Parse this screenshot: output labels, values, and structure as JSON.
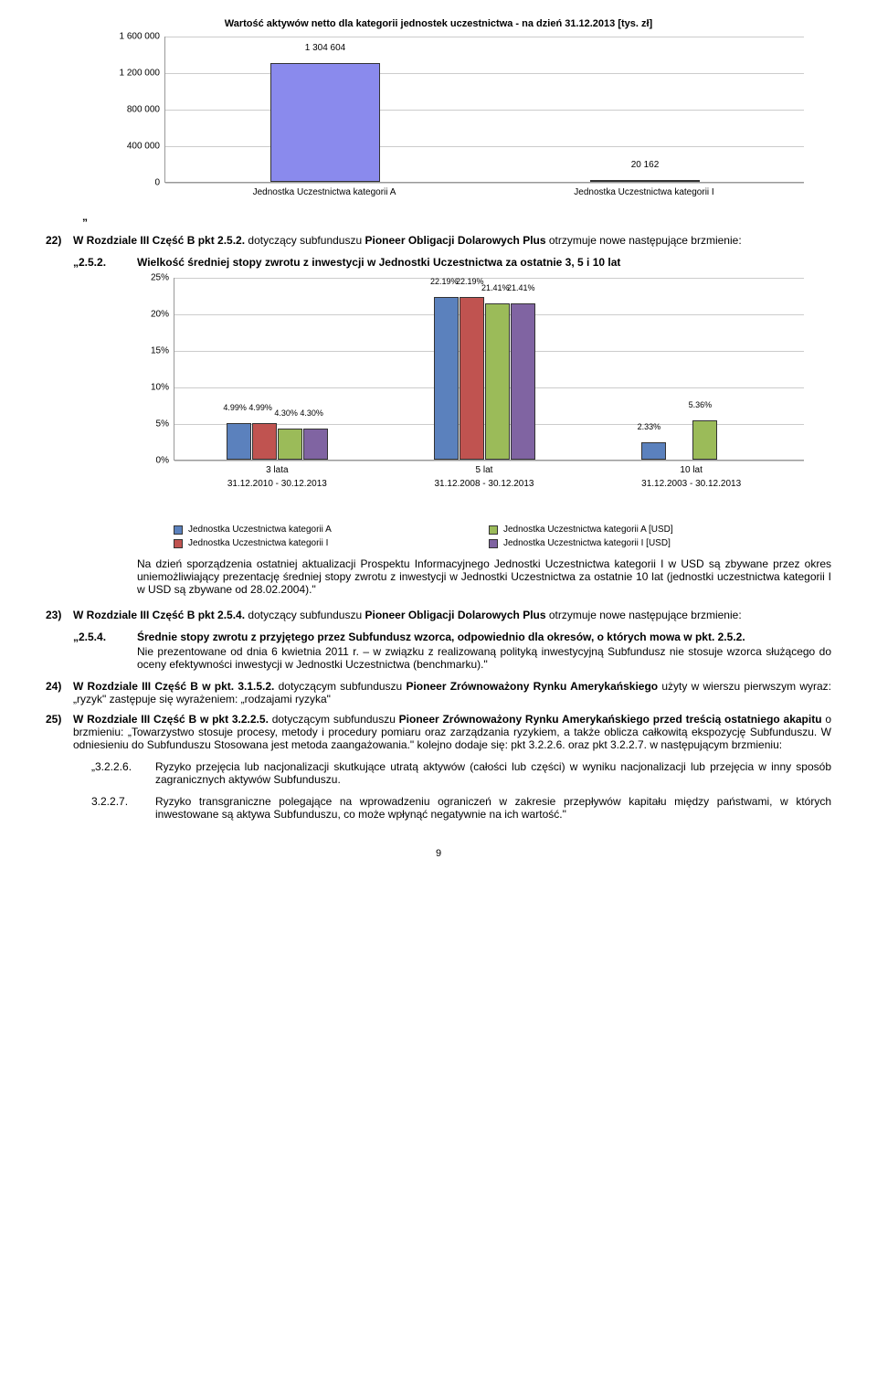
{
  "chart1": {
    "title": "Wartość aktywów netto dla kategorii jednostek uczestnictwa - na dzień 31.12.2013 [tys. zł]",
    "yticks": [
      "0",
      "400 000",
      "800 000",
      "1 200 000",
      "1 600 000"
    ],
    "ymax": 1600000,
    "categories": [
      "Jednostka Uczestnictwa kategorii A",
      "Jednostka Uczestnictwa kategorii I"
    ],
    "values": [
      1304604,
      20162
    ],
    "labels": [
      "1 304 604",
      "20 162"
    ],
    "bar_color": "#8a8aed",
    "grid_color": "#cccccc"
  },
  "quote": "„",
  "item22": {
    "num": "22)",
    "text_a": "W Rozdziale III Część B pkt 2.5.2.",
    "text_b": " dotyczący subfunduszu ",
    "text_c": "Pioneer Obligacji Dolarowych Plus",
    "text_d": " otrzymuje nowe następujące brzmienie:"
  },
  "sec252": {
    "id": "„2.5.2.",
    "text": "Wielkość średniej stopy zwrotu z inwestycji w Jednostki Uczestnictwa za ostatnie 3, 5 i 10 lat"
  },
  "chart2": {
    "yticks": [
      "0%",
      "5%",
      "10%",
      "15%",
      "20%",
      "25%"
    ],
    "ymax": 25,
    "groups": [
      {
        "cat": "3 lata",
        "sub": "31.12.2010 - 30.12.2013",
        "bars": [
          {
            "v": 4.99,
            "label": "4.99%",
            "color": "#5b81bd"
          },
          {
            "v": 4.99,
            "label": "4.99%",
            "color": "#c05350"
          },
          {
            "v": 4.3,
            "label": "4.30%",
            "color": "#9bbb59"
          },
          {
            "v": 4.3,
            "label": "4.30%",
            "color": "#8064a2"
          }
        ]
      },
      {
        "cat": "5 lat",
        "sub": "31.12.2008 - 30.12.2013",
        "bars": [
          {
            "v": 22.19,
            "label": "22.19%",
            "color": "#5b81bd"
          },
          {
            "v": 22.19,
            "label": "22.19%",
            "color": "#c05350"
          },
          {
            "v": 21.41,
            "label": "21.41%",
            "color": "#9bbb59"
          },
          {
            "v": 21.41,
            "label": "21.41%",
            "color": "#8064a2"
          }
        ]
      },
      {
        "cat": "10 lat",
        "sub": "31.12.2003 - 30.12.2013",
        "bars": [
          {
            "v": 2.33,
            "label": "2.33%",
            "color": "#5b81bd"
          },
          {
            "v": 0,
            "label": "",
            "color": "#c05350"
          },
          {
            "v": 5.36,
            "label": "5.36%",
            "color": "#9bbb59"
          },
          {
            "v": 0,
            "label": "",
            "color": "#8064a2"
          }
        ]
      }
    ],
    "legend": [
      {
        "color": "#5b81bd",
        "label": "Jednostka Uczestnictwa kategorii A"
      },
      {
        "color": "#c05350",
        "label": "Jednostka Uczestnictwa kategorii I"
      },
      {
        "color": "#9bbb59",
        "label": "Jednostka Uczestnictwa kategorii A [USD]"
      },
      {
        "color": "#8064a2",
        "label": "Jednostka Uczestnictwa kategorii I [USD]"
      }
    ]
  },
  "para22": "Na dzień sporządzenia ostatniej aktualizacji Prospektu Informacyjnego Jednostki Uczestnictwa kategorii I w USD są zbywane przez okres uniemożliwiający prezentację średniej stopy zwrotu z inwestycji w Jednostki Uczestnictwa za ostatnie 10 lat (jednostki uczestnictwa kategorii I w USD są zbywane od 28.02.2004).\"",
  "item23": {
    "num": "23)",
    "text_a": "W Rozdziale III Część B pkt 2.5.4.",
    "text_b": " dotyczący subfunduszu ",
    "text_c": "Pioneer Obligacji Dolarowych Plus",
    "text_d": " otrzymuje nowe następujące brzmienie:"
  },
  "sec254": {
    "id": "„2.5.4.",
    "text_a": "Średnie stopy zwrotu z przyjętego przez Subfundusz wzorca, odpowiednio dla okresów, o których mowa w pkt. 2.5.2.",
    "text_b": "Nie prezentowane od dnia 6 kwietnia 2011 r. – w związku z realizowaną polityką inwestycyjną Subfundusz nie stosuje wzorca służącego do oceny efektywności inwestycji w Jednostki Uczestnictwa (benchmarku).\""
  },
  "item24": {
    "num": "24)",
    "text_a": "W Rozdziale III Część B w pkt. 3.1.5.2.",
    "text_b": " dotyczącym subfunduszu ",
    "text_c": "Pioneer Zrównoważony Rynku Amerykańskiego",
    "text_d": " użyty w wierszu pierwszym wyraz: „ryzyk\" zastępuje się wyrażeniem: „rodzajami ryzyka\""
  },
  "item25": {
    "num": "25)",
    "text_a": "W Rozdziale III Część B w pkt 3.2.2.5.",
    "text_b": " dotyczącym subfunduszu ",
    "text_c": "Pioneer Zrównoważony Rynku Amerykańskiego",
    "text_d": " przed treścią ostatniego akapitu",
    "text_e": " o brzmieniu: „Towarzystwo stosuje procesy, metody i procedury pomiaru oraz zarządzania ryzykiem, a także oblicza całkowitą ekspozycję Subfunduszu. W odniesieniu do Subfunduszu Stosowana jest metoda zaangażowania.\" kolejno dodaje się: pkt 3.2.2.6. oraz pkt 3.2.2.7. w następującym brzmieniu:"
  },
  "sec3226": {
    "id": "„3.2.2.6.",
    "text": "Ryzyko przejęcia lub nacjonalizacji skutkujące utratą aktywów (całości lub części) w wyniku nacjonalizacji lub przejęcia w inny sposób zagranicznych aktywów Subfunduszu."
  },
  "sec3227": {
    "id": "3.2.2.7.",
    "text": "Ryzyko transgraniczne polegające na wprowadzeniu ograniczeń w zakresie przepływów kapitału między państwami, w których inwestowane są aktywa Subfunduszu, co może wpłynąć negatywnie na ich wartość.\""
  },
  "page": "9"
}
